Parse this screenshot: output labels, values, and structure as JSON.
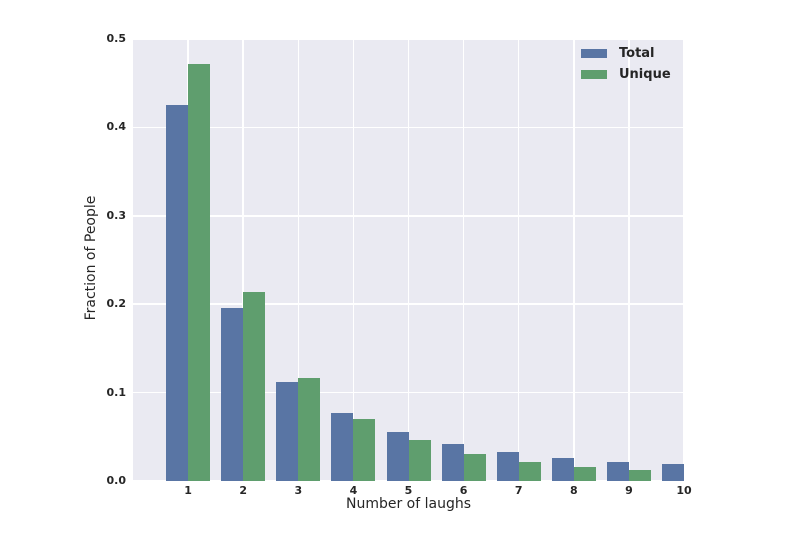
{
  "chart_data": {
    "type": "bar",
    "title": "",
    "xlabel": "Number of laughs",
    "ylabel": "Fraction of People",
    "categories": [
      "1",
      "2",
      "3",
      "4",
      "5",
      "6",
      "7",
      "8",
      "9",
      "10"
    ],
    "series": [
      {
        "name": "Total",
        "color": "#5975a4",
        "values": [
          0.425,
          0.196,
          0.112,
          0.077,
          0.055,
          0.042,
          0.033,
          0.026,
          0.022,
          0.019
        ]
      },
      {
        "name": "Unique",
        "color": "#5f9e6e",
        "values": [
          0.472,
          0.214,
          0.117,
          0.07,
          0.046,
          0.031,
          0.021,
          0.016,
          0.012,
          null
        ]
      }
    ],
    "xlim": [
      0,
      10
    ],
    "ylim": [
      0,
      0.5
    ],
    "yticks": [
      0,
      0.1,
      0.2,
      0.3,
      0.4,
      0.5
    ],
    "ytick_labels": [
      "0.0",
      "0.1",
      "0.2",
      "0.3",
      "0.4",
      "0.5"
    ],
    "grid": true,
    "legend": {
      "position": "upper right",
      "entries": [
        "Total",
        "Unique"
      ]
    },
    "colors": {
      "plot_background": "#eaeaf2",
      "gridline": "#ffffff",
      "text": "#262626",
      "figure_background": "#ffffff"
    },
    "note": "Unique bar for category 10 is clipped by the right axis limit and not visible"
  }
}
